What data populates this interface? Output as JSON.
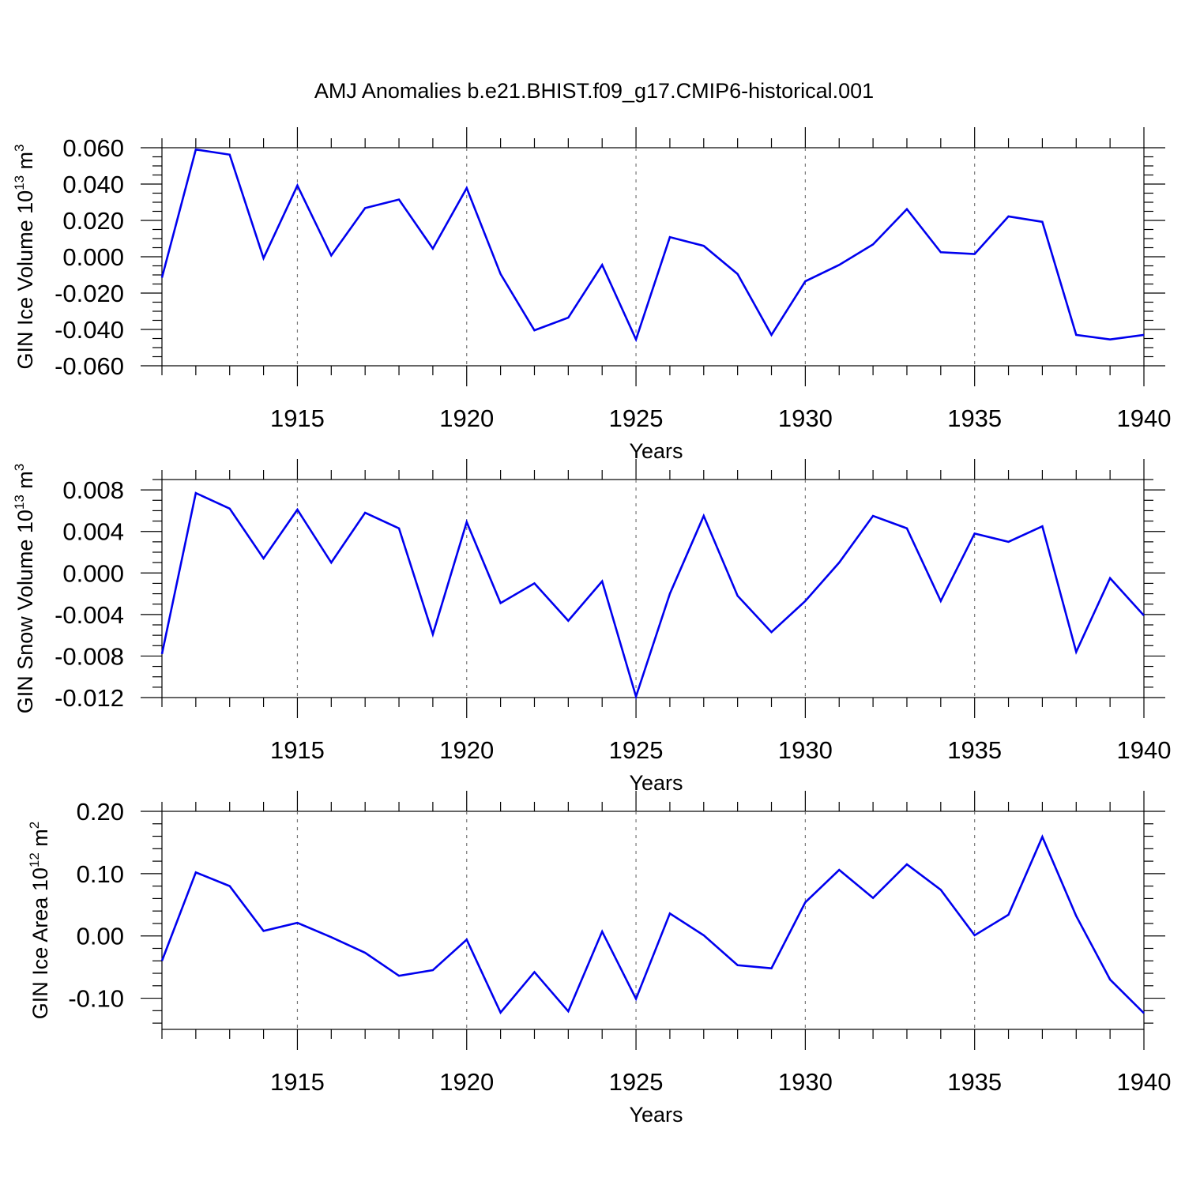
{
  "title": "AMJ Anomalies b.e21.BHIST.f09_g17.CMIP6-historical.001",
  "chart_data": [
    {
      "type": "line",
      "ylabel": {
        "text": "GIN Ice Volume 10",
        "sup": "13",
        "unit": " m",
        "unit_sup": "3"
      },
      "xlabel": "Years",
      "xlim": [
        1911,
        1940
      ],
      "ylim": [
        -0.06,
        0.06
      ],
      "yticks": [
        -0.06,
        -0.04,
        -0.02,
        0.0,
        0.02,
        0.04,
        0.06
      ],
      "ytick_labels": [
        "-0.060",
        "-0.040",
        "-0.020",
        "0.000",
        "0.020",
        "0.040",
        "0.060"
      ],
      "yminor_step": 0.005,
      "xticks": [
        1915,
        1920,
        1925,
        1930,
        1935,
        1940
      ],
      "xtick_labels": [
        "1915",
        "1920",
        "1925",
        "1930",
        "1935",
        "1940"
      ],
      "grid": "x-dashed",
      "line_color": "#0000ee",
      "x": [
        1911,
        1912,
        1913,
        1914,
        1915,
        1916,
        1917,
        1918,
        1919,
        1920,
        1921,
        1922,
        1923,
        1924,
        1925,
        1926,
        1927,
        1928,
        1929,
        1930,
        1931,
        1932,
        1933,
        1934,
        1935,
        1936,
        1937,
        1938,
        1939,
        1940
      ],
      "values": [
        -0.0115,
        0.059,
        0.0562,
        -0.0008,
        0.0392,
        0.0007,
        0.0268,
        0.0315,
        0.0045,
        0.0378,
        -0.0095,
        -0.0405,
        -0.0335,
        -0.0045,
        -0.0455,
        0.0108,
        0.006,
        -0.0095,
        -0.043,
        -0.0135,
        -0.0045,
        0.0068,
        0.0262,
        0.0025,
        0.0015,
        0.0222,
        0.0192,
        -0.043,
        -0.0455,
        -0.043
      ]
    },
    {
      "type": "line",
      "ylabel": {
        "text": "GIN Snow Volume 10",
        "sup": "13",
        "unit": " m",
        "unit_sup": "3"
      },
      "xlabel": "Years",
      "xlim": [
        1911,
        1940
      ],
      "ylim": [
        -0.012,
        0.009
      ],
      "yticks": [
        -0.012,
        -0.008,
        -0.004,
        0.0,
        0.004,
        0.008
      ],
      "ytick_labels": [
        "-0.012",
        "-0.008",
        "-0.004",
        "0.000",
        "0.004",
        "0.008"
      ],
      "yminor_step": 0.001,
      "xticks": [
        1915,
        1920,
        1925,
        1930,
        1935,
        1940
      ],
      "xtick_labels": [
        "1915",
        "1920",
        "1925",
        "1930",
        "1935",
        "1940"
      ],
      "grid": "x-dashed",
      "line_color": "#0000ee",
      "x": [
        1911,
        1912,
        1913,
        1914,
        1915,
        1916,
        1917,
        1918,
        1919,
        1920,
        1921,
        1922,
        1923,
        1924,
        1925,
        1926,
        1927,
        1928,
        1929,
        1930,
        1931,
        1932,
        1933,
        1934,
        1935,
        1936,
        1937,
        1938,
        1939,
        1940
      ],
      "values": [
        -0.0078,
        0.0077,
        0.0062,
        0.0014,
        0.0061,
        0.001,
        0.0058,
        0.0043,
        -0.0059,
        0.0049,
        -0.0029,
        -0.001,
        -0.0046,
        -0.0008,
        -0.0119,
        -0.002,
        0.0055,
        -0.0022,
        -0.0057,
        -0.0027,
        0.001,
        0.0055,
        0.0043,
        -0.0027,
        0.0038,
        0.003,
        0.0045,
        -0.0076,
        -0.0005,
        -0.0041
      ]
    },
    {
      "type": "line",
      "ylabel": {
        "text": "GIN Ice Area 10",
        "sup": "12",
        "unit": " m",
        "unit_sup": "2"
      },
      "xlabel": "Years",
      "xlim": [
        1911,
        1940
      ],
      "ylim": [
        -0.15,
        0.2
      ],
      "yticks": [
        -0.1,
        0.0,
        0.1,
        0.2
      ],
      "ytick_labels": [
        "-0.10",
        "0.00",
        "0.10",
        "0.20"
      ],
      "yminor_step": 0.02,
      "xticks": [
        1915,
        1920,
        1925,
        1930,
        1935,
        1940
      ],
      "xtick_labels": [
        "1915",
        "1920",
        "1925",
        "1930",
        "1935",
        "1940"
      ],
      "grid": "x-dashed",
      "line_color": "#0000ee",
      "x": [
        1911,
        1912,
        1913,
        1914,
        1915,
        1916,
        1917,
        1918,
        1919,
        1920,
        1921,
        1922,
        1923,
        1924,
        1925,
        1926,
        1927,
        1928,
        1929,
        1930,
        1931,
        1932,
        1933,
        1934,
        1935,
        1936,
        1937,
        1938,
        1939,
        1940
      ],
      "values": [
        -0.04,
        0.102,
        0.08,
        0.008,
        0.021,
        -0.002,
        -0.027,
        -0.064,
        -0.055,
        -0.006,
        -0.123,
        -0.058,
        -0.121,
        0.007,
        -0.101,
        0.036,
        0.001,
        -0.047,
        -0.052,
        0.054,
        0.106,
        0.061,
        0.115,
        0.074,
        0.001,
        0.034,
        0.159,
        0.032,
        -0.07,
        -0.124
      ]
    }
  ]
}
